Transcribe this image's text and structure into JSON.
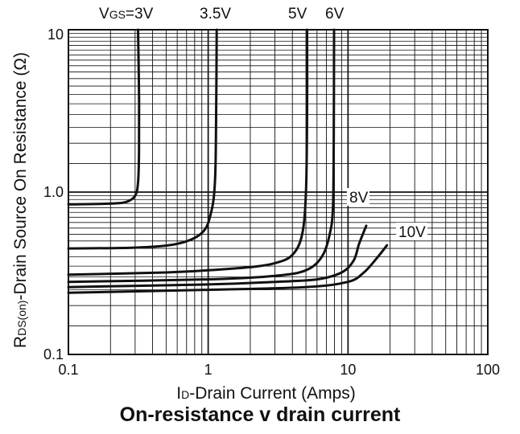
{
  "chart_data": {
    "type": "line",
    "title": "On-resistance v drain current",
    "xlabel": "ID-Drain Current (Amps)",
    "xlabel_parts": [
      "I",
      "D",
      "-Drain Current (Amps)"
    ],
    "ylabel": "RDS(on)-Drain Source On Resistance (Ω)",
    "ylabel_parts": [
      "R",
      "DS(on)",
      "-Drain Source On Resistance  (Ω)"
    ],
    "x_scale": "log",
    "y_scale": "log",
    "xlim": [
      0.1,
      100
    ],
    "ylim": [
      0.1,
      10
    ],
    "grid": true,
    "x_ticks": [
      {
        "value": 0.1,
        "label": "0.1"
      },
      {
        "value": 1,
        "label": "1"
      },
      {
        "value": 10,
        "label": "10"
      },
      {
        "value": 100,
        "label": "100"
      }
    ],
    "y_ticks": [
      {
        "value": 0.1,
        "label": "0.1"
      },
      {
        "value": 1,
        "label": "1.0"
      },
      {
        "value": 10,
        "label": "10"
      }
    ],
    "series": [
      {
        "name": "VGS=3V",
        "label_main": "V",
        "label_sub": "GS",
        "label_tail": "=3V",
        "points": [
          [
            0.1,
            0.84
          ],
          [
            0.2,
            0.85
          ],
          [
            0.26,
            0.87
          ],
          [
            0.3,
            0.95
          ],
          [
            0.315,
            1.15
          ],
          [
            0.32,
            1.8
          ],
          [
            0.32,
            4
          ],
          [
            0.315,
            10
          ]
        ]
      },
      {
        "name": "3.5V",
        "label_tail": "3.5V",
        "points": [
          [
            0.1,
            0.45
          ],
          [
            0.3,
            0.455
          ],
          [
            0.6,
            0.48
          ],
          [
            0.9,
            0.56
          ],
          [
            1.05,
            0.75
          ],
          [
            1.12,
            1.2
          ],
          [
            1.14,
            3
          ],
          [
            1.15,
            10
          ]
        ]
      },
      {
        "name": "5V",
        "label_tail": "5V",
        "points": [
          [
            0.1,
            0.31
          ],
          [
            0.5,
            0.32
          ],
          [
            1,
            0.33
          ],
          [
            2,
            0.345
          ],
          [
            3,
            0.365
          ],
          [
            4,
            0.41
          ],
          [
            4.7,
            0.55
          ],
          [
            5,
            1
          ],
          [
            5.1,
            3
          ],
          [
            5.1,
            10
          ]
        ]
      },
      {
        "name": "6V",
        "label_tail": "6V",
        "points": [
          [
            0.1,
            0.28
          ],
          [
            1,
            0.29
          ],
          [
            3,
            0.305
          ],
          [
            5,
            0.33
          ],
          [
            6.5,
            0.4
          ],
          [
            7.4,
            0.55
          ],
          [
            7.8,
            0.8
          ],
          [
            7.9,
            2
          ],
          [
            7.95,
            10
          ]
        ]
      },
      {
        "name": "8V",
        "label_tail": "8V",
        "points": [
          [
            0.1,
            0.26
          ],
          [
            1,
            0.27
          ],
          [
            3,
            0.28
          ],
          [
            6,
            0.29
          ],
          [
            9,
            0.32
          ],
          [
            11,
            0.38
          ],
          [
            12,
            0.48
          ],
          [
            13.5,
            0.62
          ]
        ]
      },
      {
        "name": "10V",
        "label_tail": "10V",
        "points": [
          [
            0.1,
            0.24
          ],
          [
            1,
            0.25
          ],
          [
            5,
            0.26
          ],
          [
            10,
            0.28
          ],
          [
            13,
            0.32
          ],
          [
            16,
            0.39
          ],
          [
            19,
            0.47
          ]
        ]
      }
    ]
  }
}
